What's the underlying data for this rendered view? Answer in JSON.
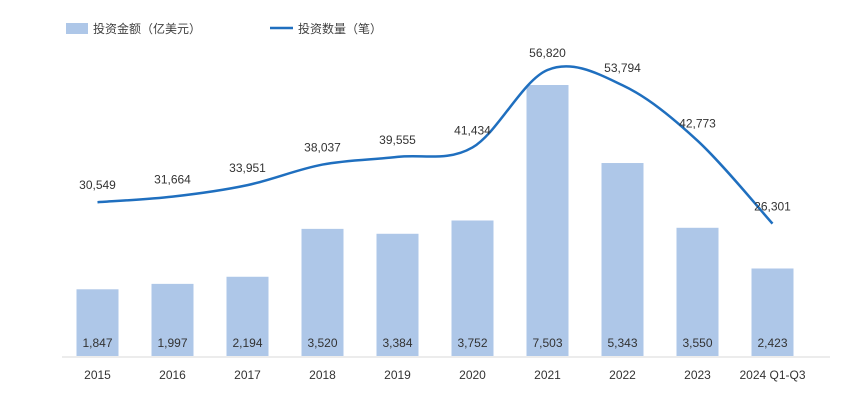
{
  "chart_data": {
    "type": "bar",
    "categories": [
      "2015",
      "2016",
      "2017",
      "2018",
      "2019",
      "2020",
      "2021",
      "2022",
      "2023",
      "2024 Q1-Q3"
    ],
    "series": [
      {
        "name": "投资金额（亿美元）",
        "kind": "bar",
        "color": "#aec7e8",
        "values": [
          1847,
          1997,
          2194,
          3520,
          3384,
          3752,
          7503,
          5343,
          3550,
          2423
        ],
        "labels": [
          "1,847",
          "1,997",
          "2,194",
          "3,520",
          "3,384",
          "3,752",
          "7,503",
          "5,343",
          "3,550",
          "2,423"
        ]
      },
      {
        "name": "投资数量（笔）",
        "kind": "line",
        "color": "#1f6fbf",
        "values": [
          30549,
          31664,
          33951,
          38037,
          39555,
          41434,
          56820,
          53794,
          42773,
          26301
        ],
        "labels": [
          "30,549",
          "31,664",
          "33,951",
          "38,037",
          "39,555",
          "41,434",
          "56,820",
          "53,794",
          "42,773",
          "26,301"
        ]
      }
    ],
    "bar_axis_max": 8500,
    "line_axis_range": [
      0,
      60000
    ],
    "grid": false,
    "legend_position": "top-left"
  }
}
